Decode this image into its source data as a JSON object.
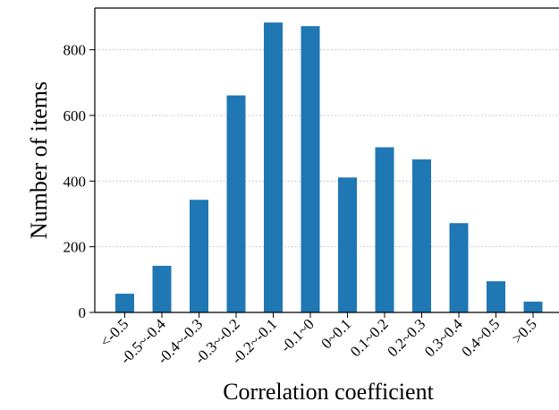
{
  "chart_data": {
    "type": "bar",
    "title": "",
    "xlabel": "Correlation coefficient",
    "ylabel": "Number of items",
    "categories": [
      "<-0.5",
      "-0.5~-0.4",
      "-0.4~-0.3",
      "-0.3~-0.2",
      "-0.2~-0.1",
      "-0.1~0",
      "0~0.1",
      "0.1~0.2",
      "0.2~0.3",
      "0.3~0.4",
      "0.4~0.5",
      ">0.5"
    ],
    "values": [
      57,
      142,
      343,
      661,
      883,
      872,
      411,
      503,
      466,
      272,
      95,
      33
    ],
    "ylim": [
      0,
      927
    ],
    "yticks": [
      0,
      200,
      400,
      600,
      800
    ],
    "grid": "y, dotted",
    "colors": {
      "bar": "#1f77b4",
      "grid": "#b0b0b0",
      "axis": "#000000"
    }
  }
}
